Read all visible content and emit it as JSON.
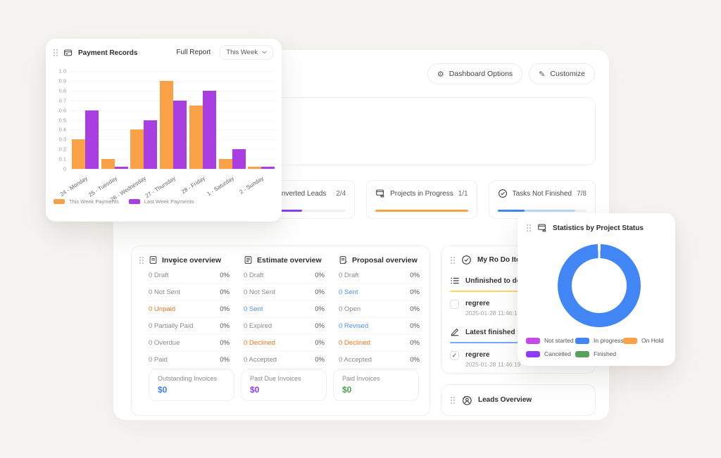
{
  "background_color": "#f6f4f1",
  "header": {
    "dashboard_options_label": "Dashboard Options",
    "customize_label": "Customize"
  },
  "payment_records": {
    "title": "Payment Records",
    "full_report_label": "Full Report",
    "period_selector": "This Week",
    "chart_data": {
      "type": "bar",
      "title": "Payment Records",
      "categories": [
        "24 - Monday",
        "25 - Tuesday",
        "26 - Wednesday",
        "27 - Thursday",
        "28 - Friday",
        "1 - Saturday",
        "2 - Sunday"
      ],
      "series": [
        {
          "name": "This Week Payments",
          "color": "#F9A147",
          "values": [
            0.3,
            0.1,
            0.4,
            0.9,
            0.65,
            0.1,
            0.02
          ]
        },
        {
          "name": "Last Week Payments",
          "color": "#A93EE1",
          "values": [
            0.6,
            0.02,
            0.5,
            0.7,
            0.8,
            0.2,
            0.02
          ]
        }
      ],
      "ylim": [
        0,
        1.0
      ],
      "ytick_labels": [
        "0",
        "0.1",
        "0.2",
        "0.3",
        "0.4",
        "0.5",
        "0.6",
        "0.7",
        "0.8",
        "0.9",
        "1.0"
      ],
      "grid": true,
      "legend_position": "bottom"
    }
  },
  "stats_cards": [
    {
      "label": "Converted Leads",
      "count": "2/4",
      "icon": "leads-icon",
      "fill_color": "#8B3DF9",
      "track_color": "#f0f0f1",
      "fill_pct": 50
    },
    {
      "label": "Projects in Progress",
      "count": "1/1",
      "icon": "projects-icon",
      "fill_color": "#F9A147",
      "track_color": "#f0f0f1",
      "fill_pct": 100
    },
    {
      "label": "Tasks Not Finished",
      "count": "7/8",
      "icon": "tasks-icon",
      "fill_color": "#4285F4",
      "track_color": "#f0f0f1",
      "fill_pct": 30,
      "buffer_pct": 87.5,
      "buffer_color": "#bcd5fa"
    }
  ],
  "stray_badge": "1",
  "overviews": [
    {
      "title": "Invoice overview",
      "icon": "invoice-icon",
      "rows": [
        {
          "label": "0 Draft",
          "value": "0%"
        },
        {
          "label": "0 Not Sent",
          "value": "0%"
        },
        {
          "label": "0 Unpaid",
          "value": "0%",
          "label_color": "#F0731D"
        },
        {
          "label": "0 Partially Paid",
          "value": "0%"
        },
        {
          "label": "0 Overdue",
          "value": "0%"
        },
        {
          "label": "0 Paid",
          "value": "0%"
        }
      ]
    },
    {
      "title": "Estimate overview",
      "icon": "estimate-icon",
      "rows": [
        {
          "label": "0 Draft",
          "value": "0%"
        },
        {
          "label": "0 Not Sent",
          "value": "0%"
        },
        {
          "label": "0 Sent",
          "value": "0%",
          "label_color": "#4A90F4"
        },
        {
          "label": "0 Expired",
          "value": "0%"
        },
        {
          "label": "0 Declined",
          "value": "0%",
          "label_color": "#F0731D"
        },
        {
          "label": "0 Accepted",
          "value": "0%"
        }
      ]
    },
    {
      "title": "Proposal overview",
      "icon": "proposal-icon",
      "rows": [
        {
          "label": "0 Draft",
          "value": "0%"
        },
        {
          "label": "0 Sent",
          "value": "0%",
          "label_color": "#4A90F4"
        },
        {
          "label": "0 Open",
          "value": "0%"
        },
        {
          "label": "0 Revised",
          "value": "0%",
          "label_color": "#4A90F4"
        },
        {
          "label": "0 Declined",
          "value": "0%",
          "label_color": "#F0731D"
        },
        {
          "label": "0 Accepted",
          "value": "0%"
        }
      ]
    }
  ],
  "invoice_summary": [
    {
      "label": "Outstanding Invoices",
      "value": "$0",
      "color": "#3B7CF6"
    },
    {
      "label": "Past Due Invoices",
      "value": "$0",
      "color": "#8B3DF9"
    },
    {
      "label": "Paid Invoices",
      "value": "$0",
      "color": "#47A44B"
    }
  ],
  "todo": {
    "title": "My Ro Do Items",
    "sections": [
      {
        "title": "Unfinished to do's",
        "icon": "list-icon",
        "underline_color": "#FFD666",
        "items": [
          {
            "title": "regrere",
            "timestamp": "2025-01-28 11:46:19",
            "checked": false
          }
        ]
      },
      {
        "title": "Latest finished to do's",
        "icon": "pen-icon",
        "underline_color": "#76A9F9",
        "items": [
          {
            "title": "regrere",
            "timestamp": "2025-01-28 11:46:19",
            "checked": true
          }
        ]
      }
    ]
  },
  "leads_overview": {
    "title": "Leads Overview"
  },
  "project_status": {
    "title": "Statistics by Project Status",
    "chart_data": {
      "type": "pie",
      "donut": true,
      "slices": [
        {
          "label": "Not started",
          "value": 0,
          "color": "#C44BE8"
        },
        {
          "label": "In progress",
          "value": 100,
          "color": "#4285F4"
        },
        {
          "label": "On Hold",
          "value": 0,
          "color": "#F9A147"
        },
        {
          "label": "Cancelled",
          "value": 0,
          "color": "#8B3DF9"
        },
        {
          "label": "Finished",
          "value": 0,
          "color": "#57A15C"
        }
      ],
      "legend_position": "bottom"
    }
  },
  "icons": {
    "drag-handle-icon": "six dots",
    "payment-records-icon": "payment card",
    "gear-icon": "⚙",
    "pencil-icon": "✎",
    "check-circle-icon": "circled check",
    "list-icon": "bulleted list",
    "pen-icon": "signing pen",
    "person-icon": "person in circle",
    "stats-status-icon": "stacked windows",
    "invoice-icon": "document",
    "estimate-icon": "document with lines",
    "proposal-icon": "document with pen",
    "leads-icon": "person",
    "projects-icon": "stacked windows",
    "tasks-icon": "circled check",
    "chevron-down-icon": "⌄",
    "checkmark": "✓"
  }
}
